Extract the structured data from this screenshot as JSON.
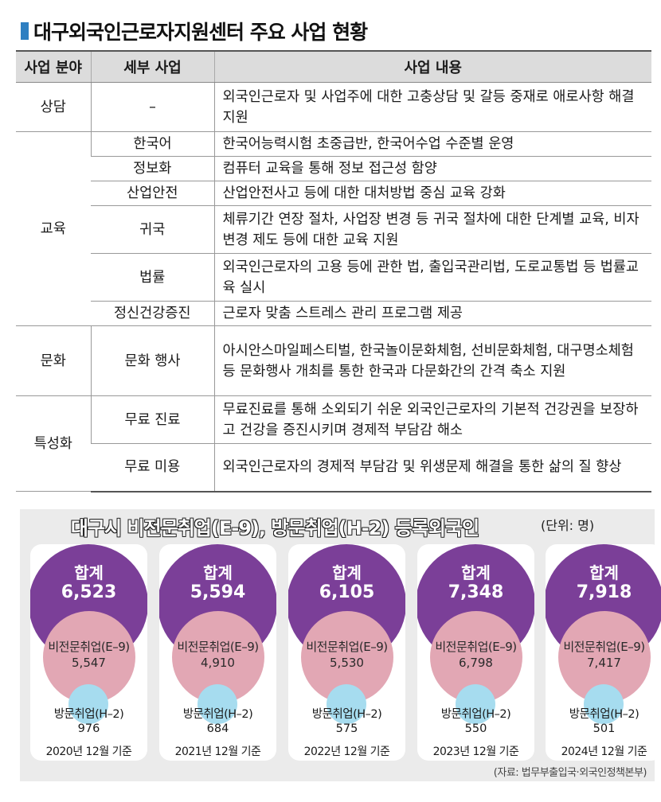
{
  "title": "대구외국인근로자지원센터 주요 사업 현황",
  "table": {
    "headers": [
      "사업 분야",
      "세부 사업",
      "사업 내용"
    ],
    "rows": [
      {
        "field": "상담",
        "detail": "–",
        "content": "외국인근로자 및 사업주에 대한 고충상담 및 갈등 중재로 애로사항 해결 지원"
      },
      {
        "field": "교육",
        "detail": "한국어",
        "content": "한국어능력시험 초중급반, 한국어수업 수준별 운영"
      },
      {
        "field": "",
        "detail": "정보화",
        "content": "컴퓨터 교육을 통해 정보 접근성 함양"
      },
      {
        "field": "",
        "detail": "산업안전",
        "content": "산업안전사고 등에 대한 대처방법 중심 교육 강화"
      },
      {
        "field": "",
        "detail": "귀국",
        "content": "체류기간 연장 절차, 사업장 변경 등 귀국 절차에 대한 단계별 교육, 비자변경 제도 등에 대한 교육 지원"
      },
      {
        "field": "",
        "detail": "법률",
        "content": "외국인근로자의 고용 등에 관한 법, 출입국관리법, 도로교통법 등 법률교육 실시"
      },
      {
        "field": "",
        "detail": "정신건강증진",
        "content": "근로자 맞춤 스트레스 관리 프로그램 제공"
      },
      {
        "field": "문화",
        "detail": "문화 행사",
        "content": "아시안스마일페스티벌, 한국놀이문화체험, 선비문화체험, 대구명소체험 등 문화행사 개최를 통한 한국과 다문화간의 간격 축소 지원"
      },
      {
        "field": "특성화",
        "detail": "무료 진료",
        "content": "무료진료를 통해 소외되기 쉬운 외국인근로자의 기본적 건강권을 보장하고 건강을 증진시키며 경제적 부담감 해소"
      },
      {
        "field": "",
        "detail": "무료 미용",
        "content": "외국인근로자의 경제적 부담감 및 위생문제 해결을 통한 삶의 질 향상"
      }
    ]
  },
  "infographic": {
    "title": "대구시 비전문취업(E-9), 방문취업(H-2) 등록외국인",
    "unit": "(단위: 명)",
    "total_label": "합계",
    "e9_label": "비전문취업(E–9)",
    "h2_label": "방문취업(H–2)",
    "source": "(자료: 법무부출입국·외국인정책본부)",
    "colors": {
      "total": "#7b3f98",
      "e9": "#e2a7b4",
      "h2": "#a6dcef"
    },
    "years": [
      {
        "total": "6,523",
        "e9": "5,547",
        "h2": "976",
        "date": "2020년 12월 기준"
      },
      {
        "total": "5,594",
        "e9": "4,910",
        "h2": "684",
        "date": "2021년 12월 기준"
      },
      {
        "total": "6,105",
        "e9": "5,530",
        "h2": "575",
        "date": "2022년 12월 기준"
      },
      {
        "total": "7,348",
        "e9": "6,798",
        "h2": "550",
        "date": "2023년 12월 기준"
      },
      {
        "total": "7,918",
        "e9": "7,417",
        "h2": "501",
        "date": "2024년 12월 기준"
      }
    ]
  }
}
